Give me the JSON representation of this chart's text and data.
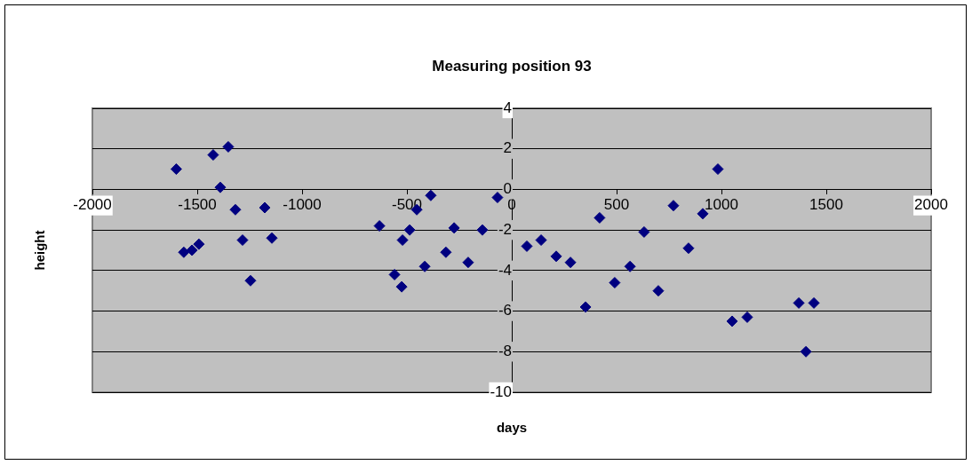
{
  "chart_data": {
    "type": "scatter",
    "title": "Measuring position 93",
    "xlabel": "days",
    "ylabel": "height",
    "x": [
      -1600,
      -1564,
      -1525,
      -1492,
      -1424,
      -1390,
      -1352,
      -1318,
      -1284,
      -1246,
      -1178,
      -1144,
      -631,
      -559,
      -525,
      -521,
      -487,
      -453,
      -415,
      -386,
      -314,
      -275,
      -208,
      -140,
      -68,
      72,
      140,
      212,
      280,
      352,
      419,
      491,
      564,
      631,
      699,
      771,
      843,
      911,
      983,
      1051,
      1123,
      1369,
      1403,
      1441
    ],
    "series": [
      {
        "color": "#000080",
        "values": [
          1.0,
          -3.1,
          -3.0,
          -2.7,
          1.7,
          0.1,
          2.1,
          -1.0,
          -2.5,
          -4.5,
          -0.9,
          -2.4,
          -1.8,
          -4.2,
          -4.8,
          -2.5,
          -2.0,
          -1.0,
          -3.8,
          -0.3,
          -3.1,
          -1.9,
          -3.6,
          -2.0,
          -0.4,
          -2.8,
          -2.5,
          -3.3,
          -3.6,
          -5.8,
          -1.4,
          -4.6,
          -3.8,
          -2.1,
          -5.0,
          -0.8,
          -2.9,
          -1.2,
          1.0,
          -6.5,
          -6.3,
          -5.6,
          -8.0,
          -5.6
        ]
      }
    ],
    "xlim": [
      -2000,
      2000
    ],
    "xticks": [
      -2000,
      -1500,
      -1000,
      -500,
      0,
      500,
      1000,
      1500,
      2000
    ],
    "ylim": [
      -10,
      4
    ],
    "yticks": [
      -10,
      -8,
      -6,
      -4,
      -2,
      0,
      2,
      4
    ],
    "grid": "y",
    "marker": "diamond",
    "legend": false
  }
}
